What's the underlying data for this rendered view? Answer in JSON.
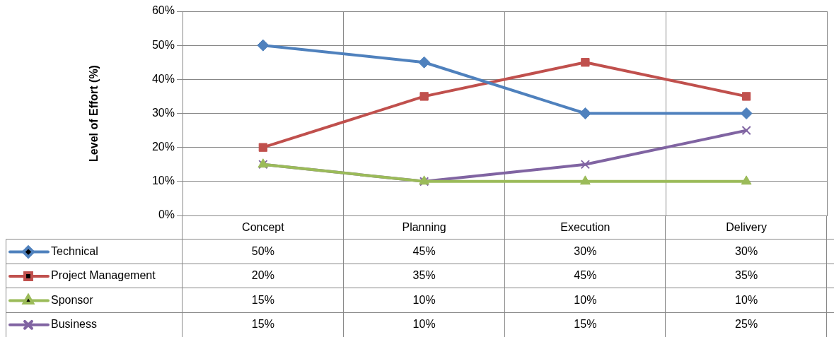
{
  "chart_data": {
    "type": "line",
    "ylabel": "Level of Effort (%)",
    "categories": [
      "Concept",
      "Planning",
      "Execution",
      "Delivery"
    ],
    "ylim": [
      0,
      60
    ],
    "yticks": [
      {
        "value": 0,
        "label": "0%"
      },
      {
        "value": 10,
        "label": "10%"
      },
      {
        "value": 20,
        "label": "20%"
      },
      {
        "value": 30,
        "label": "30%"
      },
      {
        "value": 40,
        "label": "40%"
      },
      {
        "value": 50,
        "label": "50%"
      },
      {
        "value": 60,
        "label": "60%"
      }
    ],
    "grid": true,
    "legend": "bottom left",
    "line_style": "solid",
    "series": [
      {
        "name": "Technical",
        "color": "#4f81bd",
        "marker": "diamond",
        "values": [
          50,
          45,
          30,
          30
        ],
        "value_labels": [
          "50%",
          "45%",
          "30%",
          "30%"
        ]
      },
      {
        "name": "Project Management",
        "color": "#c0504d",
        "marker": "square",
        "values": [
          20,
          35,
          45,
          35
        ],
        "value_labels": [
          "20%",
          "35%",
          "45%",
          "35%"
        ]
      },
      {
        "name": "Sponsor",
        "color": "#9bbb59",
        "marker": "triangle",
        "values": [
          15,
          10,
          10,
          10
        ],
        "value_labels": [
          "15%",
          "10%",
          "10%",
          "10%"
        ]
      },
      {
        "name": "Business",
        "color": "#8064a2",
        "marker": "cross",
        "values": [
          15,
          10,
          15,
          25
        ],
        "value_labels": [
          "15%",
          "10%",
          "15%",
          "25%"
        ]
      }
    ]
  }
}
